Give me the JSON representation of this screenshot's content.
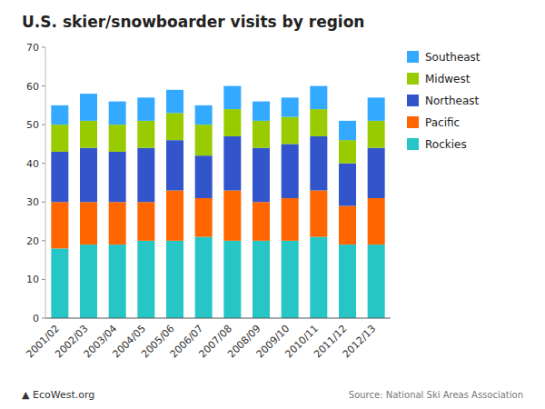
{
  "chart_data": {
    "type": "bar",
    "stacked": true,
    "title": "U.S. skier/snowboarder visits by region",
    "categories": [
      "2001/02",
      "2002/03",
      "2003/04",
      "2004/05",
      "2005/06",
      "2006/07",
      "2007/08",
      "2008/09",
      "2009/10",
      "2010/11",
      "2011/12",
      "2012/13"
    ],
    "series": [
      {
        "name": "Rockies",
        "color": "#26C6C6",
        "values": [
          18,
          19,
          19,
          20,
          20,
          21,
          20,
          20,
          20,
          21,
          19,
          19
        ]
      },
      {
        "name": "Pacific",
        "color": "#FF6600",
        "values": [
          12,
          11,
          11,
          10,
          13,
          10,
          13,
          10,
          11,
          12,
          10,
          12
        ]
      },
      {
        "name": "Northeast",
        "color": "#3355CC",
        "values": [
          13,
          14,
          13,
          14,
          13,
          11,
          14,
          14,
          14,
          14,
          11,
          13
        ]
      },
      {
        "name": "Midwest",
        "color": "#99CC00",
        "values": [
          7,
          7,
          7,
          7,
          7,
          8,
          7,
          7,
          7,
          7,
          6,
          7
        ]
      },
      {
        "name": "Southeast",
        "color": "#33AAFF",
        "values": [
          5,
          7,
          6,
          6,
          6,
          5,
          6,
          5,
          5,
          6,
          5,
          6
        ]
      }
    ],
    "ylim": [
      0,
      70
    ],
    "yticks": [
      0,
      10,
      20,
      30,
      40,
      50,
      60,
      70
    ],
    "grid": false,
    "legend": "right",
    "annotations": [
      "Source: National Ski Areas Association",
      "▲ EcoWest.org"
    ]
  }
}
